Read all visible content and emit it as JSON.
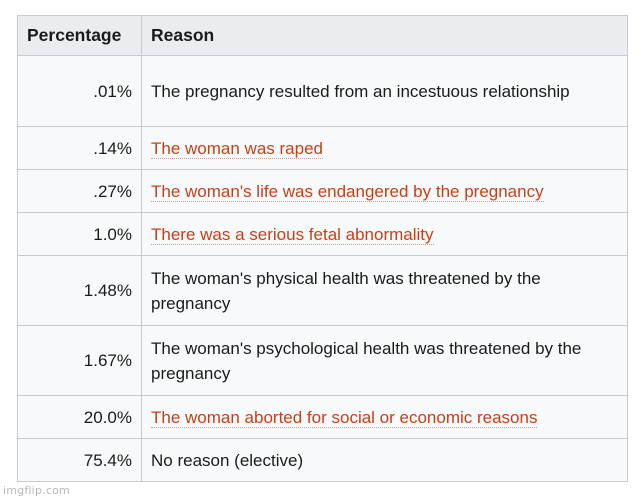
{
  "table": {
    "headers": {
      "percentage": "Percentage",
      "reason": "Reason"
    },
    "rows": [
      {
        "percentage": ".01%",
        "reason": "The pregnancy resulted from an incestuous relationship",
        "is_link": false
      },
      {
        "percentage": ".14%",
        "reason": "The woman was raped",
        "is_link": true
      },
      {
        "percentage": ".27%",
        "reason": "The woman's life was endangered by the pregnancy",
        "is_link": true
      },
      {
        "percentage": "1.0%",
        "reason": "There was a serious fetal abnormality",
        "is_link": true
      },
      {
        "percentage": "1.48%",
        "reason": "The woman's physical health was threatened by the pregnancy",
        "is_link": false
      },
      {
        "percentage": "1.67%",
        "reason": "The woman's psychological health was threatened by the pregnancy",
        "is_link": false
      },
      {
        "percentage": "20.0%",
        "reason": "The woman aborted for social or economic reasons",
        "is_link": true
      },
      {
        "percentage": "75.4%",
        "reason": "No reason (elective)",
        "is_link": false
      }
    ]
  },
  "watermark": "imgflip.com",
  "colors": {
    "link": "#c83f16",
    "header_bg": "#eaecf0",
    "cell_bg": "#f8f9fa",
    "border": "#c8ccd1"
  }
}
